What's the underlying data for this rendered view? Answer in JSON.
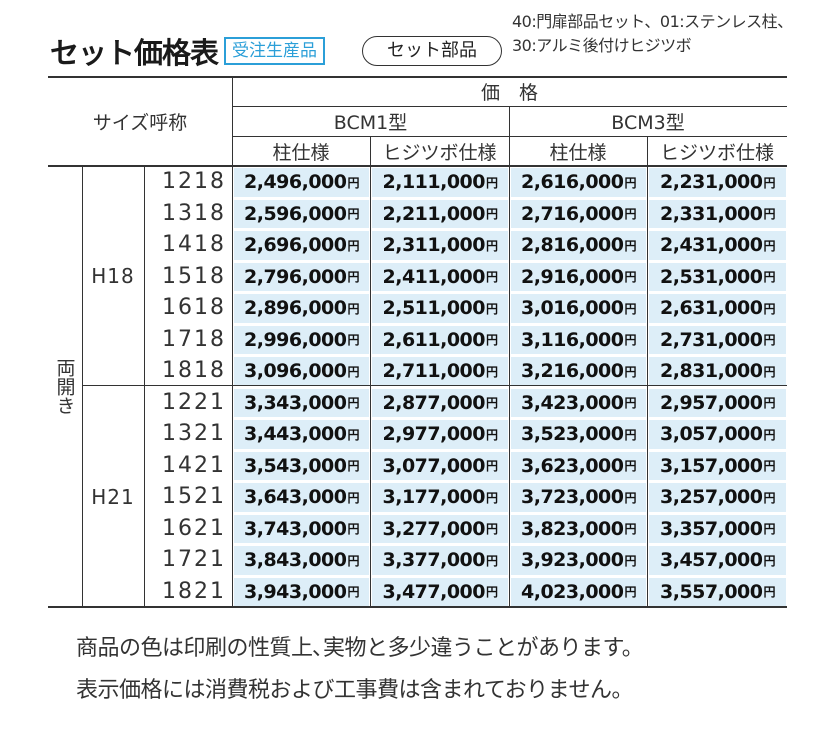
{
  "header": {
    "title": "セット価格表",
    "badge": "受注生産品",
    "set_label": "セット部品",
    "note_line1": "40:門扉部品セット、01:ステンレス柱、",
    "note_line2": "30:アルミ後付けヒジツボ"
  },
  "table": {
    "size_header": "サイズ呼称",
    "price_header": "価　格",
    "type1": "BCM1型",
    "type3": "BCM3型",
    "col_pillar": "柱仕様",
    "col_hijitsubo": "ヒジツボ仕様",
    "opening": "両開き",
    "yen": "円",
    "groups": [
      {
        "height": "H18",
        "rows": [
          {
            "size": "1218",
            "p": [
              "2,496,000",
              "2,111,000",
              "2,616,000",
              "2,231,000"
            ]
          },
          {
            "size": "1318",
            "p": [
              "2,596,000",
              "2,211,000",
              "2,716,000",
              "2,331,000"
            ]
          },
          {
            "size": "1418",
            "p": [
              "2,696,000",
              "2,311,000",
              "2,816,000",
              "2,431,000"
            ]
          },
          {
            "size": "1518",
            "p": [
              "2,796,000",
              "2,411,000",
              "2,916,000",
              "2,531,000"
            ]
          },
          {
            "size": "1618",
            "p": [
              "2,896,000",
              "2,511,000",
              "3,016,000",
              "2,631,000"
            ]
          },
          {
            "size": "1718",
            "p": [
              "2,996,000",
              "2,611,000",
              "3,116,000",
              "2,731,000"
            ]
          },
          {
            "size": "1818",
            "p": [
              "3,096,000",
              "2,711,000",
              "3,216,000",
              "2,831,000"
            ]
          }
        ]
      },
      {
        "height": "H21",
        "rows": [
          {
            "size": "1221",
            "p": [
              "3,343,000",
              "2,877,000",
              "3,423,000",
              "2,957,000"
            ]
          },
          {
            "size": "1321",
            "p": [
              "3,443,000",
              "2,977,000",
              "3,523,000",
              "3,057,000"
            ]
          },
          {
            "size": "1421",
            "p": [
              "3,543,000",
              "3,077,000",
              "3,623,000",
              "3,157,000"
            ]
          },
          {
            "size": "1521",
            "p": [
              "3,643,000",
              "3,177,000",
              "3,723,000",
              "3,257,000"
            ]
          },
          {
            "size": "1621",
            "p": [
              "3,743,000",
              "3,277,000",
              "3,823,000",
              "3,357,000"
            ]
          },
          {
            "size": "1721",
            "p": [
              "3,843,000",
              "3,377,000",
              "3,923,000",
              "3,457,000"
            ]
          },
          {
            "size": "1821",
            "p": [
              "3,943,000",
              "3,477,000",
              "4,023,000",
              "3,557,000"
            ]
          }
        ]
      }
    ]
  },
  "footnotes": {
    "line1": "商品の色は印刷の性質上､実物と多少違うことがあります。",
    "line2": "表示価格には消費税および工事費は含まれておりません。"
  }
}
